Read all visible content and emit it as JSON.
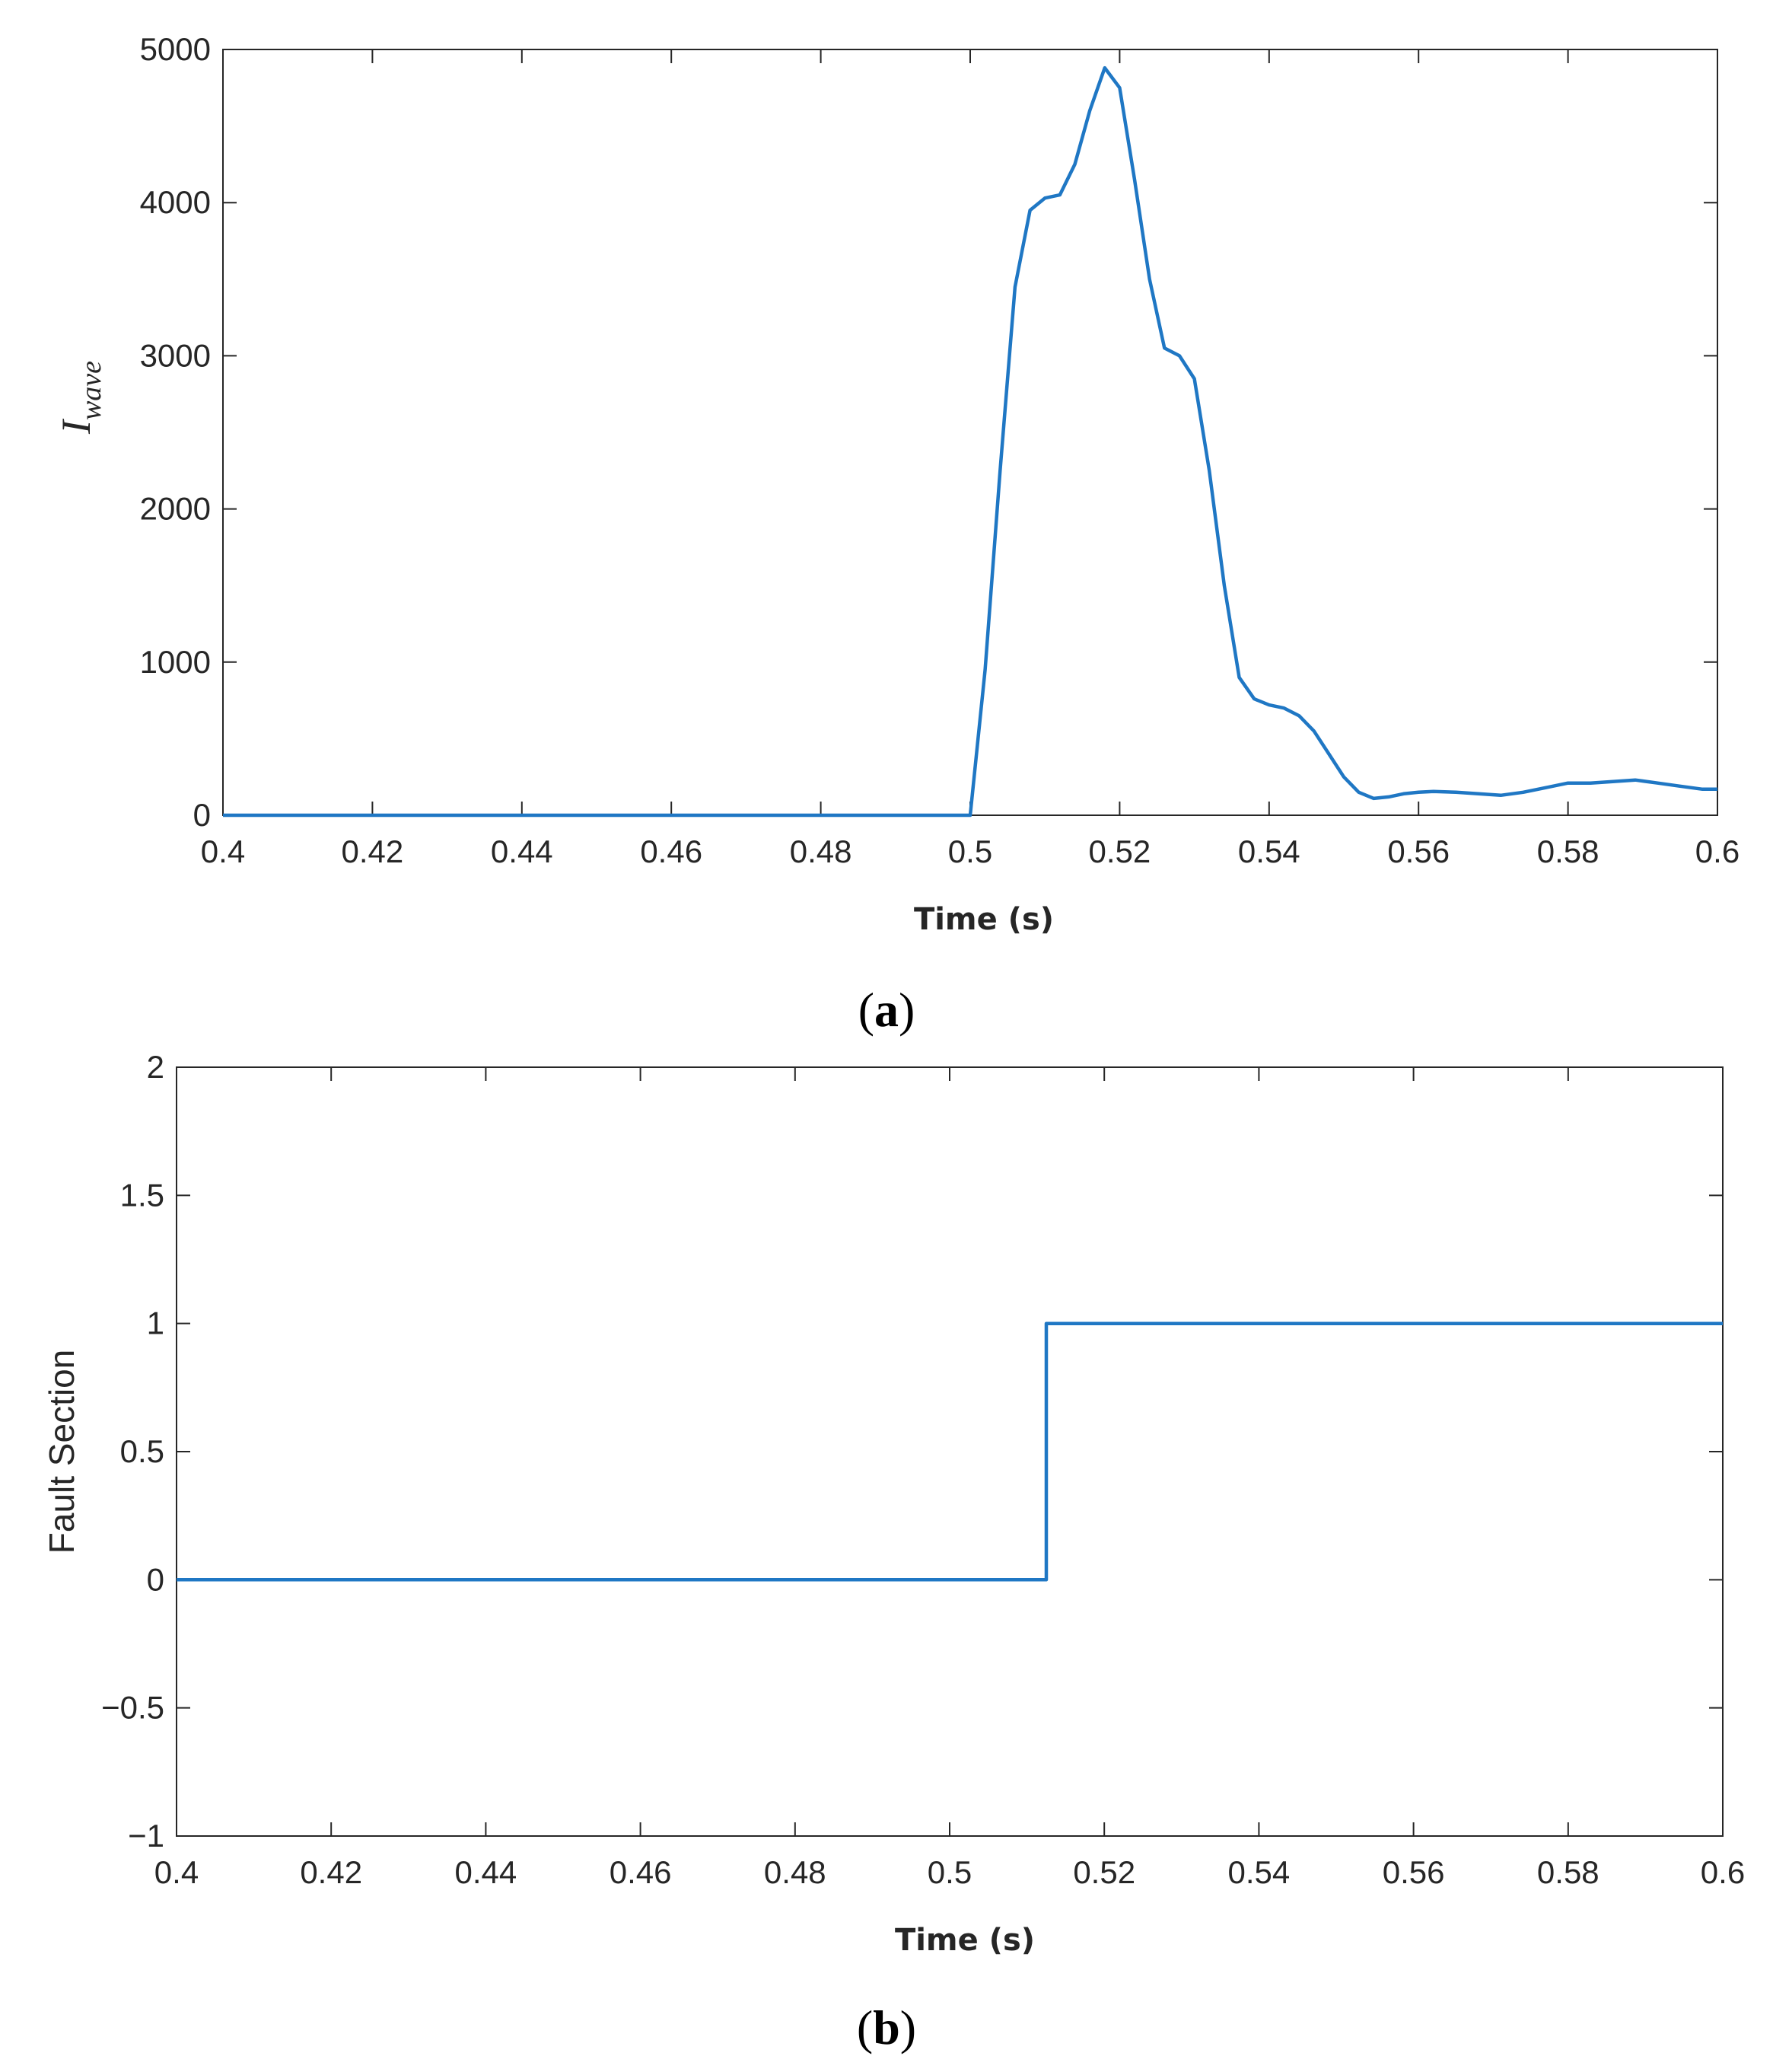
{
  "chart_data": [
    {
      "type": "line",
      "xlabel": "Time (s)",
      "ylabel": "I_wave",
      "ylabel_main": "I",
      "ylabel_sub": "wave",
      "xlim": [
        0.4,
        0.6
      ],
      "ylim": [
        0,
        5000
      ],
      "xticks": [
        0.4,
        0.42,
        0.44,
        0.46,
        0.48,
        0.5,
        0.52,
        0.54,
        0.56,
        0.58,
        0.6
      ],
      "xtick_labels": [
        "0.4",
        "0.42",
        "0.44",
        "0.46",
        "0.48",
        "0.5",
        "0.52",
        "0.54",
        "0.56",
        "0.58",
        "0.6"
      ],
      "yticks": [
        0,
        1000,
        2000,
        3000,
        4000,
        5000
      ],
      "ytick_labels": [
        "0",
        "1000",
        "2000",
        "3000",
        "4000",
        "5000"
      ],
      "grid": false,
      "color": "#1f77c4",
      "series": [
        {
          "x": [
            0.4,
            0.4995,
            0.5,
            0.502,
            0.504,
            0.506,
            0.508,
            0.51,
            0.512,
            0.514,
            0.516,
            0.518,
            0.52,
            0.522,
            0.524,
            0.526,
            0.528,
            0.53,
            0.532,
            0.534,
            0.536,
            0.538,
            0.54,
            0.542,
            0.544,
            0.546,
            0.548,
            0.55,
            0.552,
            0.554,
            0.556,
            0.558,
            0.56,
            0.562,
            0.565,
            0.568,
            0.571,
            0.574,
            0.577,
            0.58,
            0.583,
            0.586,
            0.589,
            0.592,
            0.595,
            0.598,
            0.6
          ],
          "y": [
            0,
            0,
            0,
            950,
            2250,
            3450,
            3950,
            4030,
            4050,
            4250,
            4600,
            4880,
            4750,
            4150,
            3500,
            3050,
            3000,
            2850,
            2250,
            1500,
            900,
            760,
            720,
            700,
            650,
            550,
            400,
            250,
            150,
            110,
            120,
            140,
            150,
            155,
            150,
            140,
            130,
            150,
            180,
            210,
            210,
            220,
            230,
            210,
            190,
            170,
            170
          ]
        }
      ]
    },
    {
      "type": "line",
      "xlabel": "Time (s)",
      "ylabel": "Fault Section",
      "xlim": [
        0.4,
        0.6
      ],
      "ylim": [
        -1,
        2
      ],
      "xticks": [
        0.4,
        0.42,
        0.44,
        0.46,
        0.48,
        0.5,
        0.52,
        0.54,
        0.56,
        0.58,
        0.6
      ],
      "xtick_labels": [
        "0.4",
        "0.42",
        "0.44",
        "0.46",
        "0.48",
        "0.5",
        "0.52",
        "0.54",
        "0.56",
        "0.58",
        "0.6"
      ],
      "yticks": [
        -1,
        -0.5,
        0,
        0.5,
        1,
        1.5,
        2
      ],
      "ytick_labels": [
        "−1",
        "−0.5",
        "0",
        "0.5",
        "1",
        "1.5",
        "2"
      ],
      "grid": false,
      "color": "#1f77c4",
      "series": [
        {
          "x": [
            0.4,
            0.5125,
            0.5125,
            0.6
          ],
          "y": [
            0,
            0,
            1,
            1
          ]
        }
      ]
    }
  ],
  "panel_labels": {
    "a_left": "(",
    "a_letter": "a",
    "a_right": ")",
    "b_left": "(",
    "b_letter": "b",
    "b_right": ")"
  }
}
